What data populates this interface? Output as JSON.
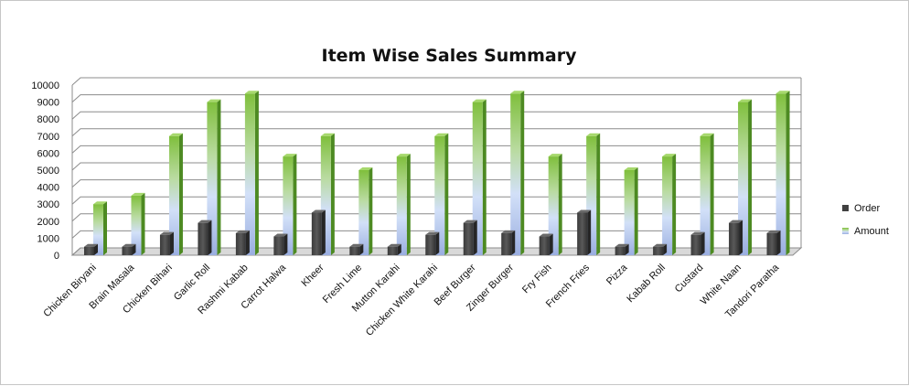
{
  "chart_data": {
    "type": "bar",
    "title": "Item Wise Sales Summary",
    "xlabel": "",
    "ylabel": "",
    "ylim": [
      0,
      10000
    ],
    "yticks": [
      0,
      1000,
      2000,
      3000,
      4000,
      5000,
      6000,
      7000,
      8000,
      9000,
      10000
    ],
    "grid": true,
    "legend_position": "right",
    "categories": [
      "Chicken Biryani",
      "Brain Masala",
      "Chicken Bihari",
      "Garlic Roll",
      "Rashmi Kabab",
      "Carrot Halwa",
      "Kheer",
      "Fresh Lime",
      "Mutton Karahi",
      "Chicken White Karahi",
      "Beef Burger",
      "Zinger Burger",
      "Fry Fish",
      "French Fries",
      "Pizza",
      "Kabab Roll",
      "Custard",
      "White Naan",
      "Tandori Paratha"
    ],
    "series": [
      {
        "name": "Order",
        "color": "#404040",
        "values": [
          500,
          500,
          1200,
          1900,
          1300,
          1100,
          2500,
          500,
          500,
          1200,
          1900,
          1300,
          1100,
          2500,
          500,
          500,
          1200,
          1900,
          1300
        ]
      },
      {
        "name": "Amount",
        "color": "#7dc242",
        "values": [
          3000,
          3500,
          7000,
          9000,
          9500,
          5800,
          7000,
          5000,
          5800,
          7000,
          9000,
          9500,
          5800,
          7000,
          5000,
          5800,
          7000,
          9000,
          9500
        ]
      }
    ]
  }
}
